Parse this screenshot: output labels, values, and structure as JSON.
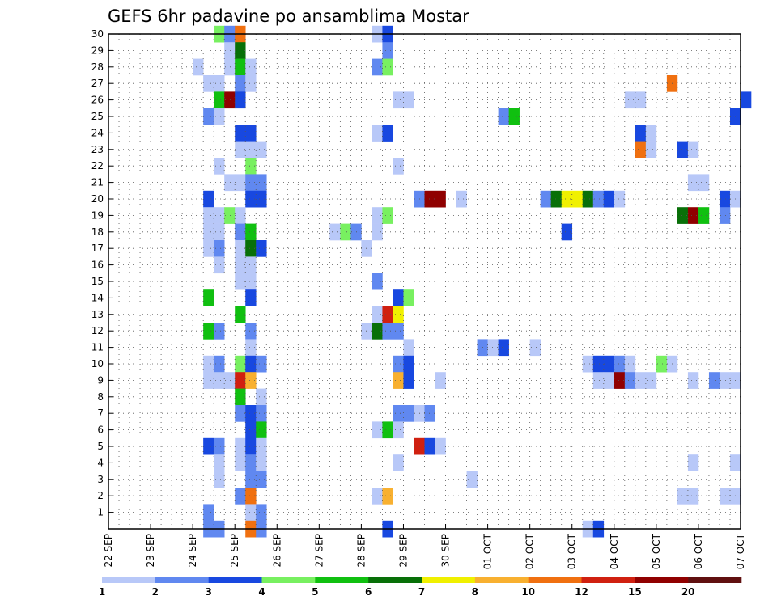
{
  "chart_data": {
    "type": "heatmap",
    "title": "GEFS 6hr padavine po ansamblima Mostar",
    "x_tick_labels": [
      "22 SEP",
      "23 SEP",
      "24 SEP",
      "25 SEP",
      "26 SEP",
      "27 SEP",
      "28 SEP",
      "29 SEP",
      "30 SEP",
      "01 OCT",
      "02 OCT",
      "03 OCT",
      "04 OCT",
      "05 OCT",
      "06 OCT",
      "07 OCT"
    ],
    "y_tick_labels": [
      "1",
      "2",
      "3",
      "4",
      "5",
      "6",
      "7",
      "8",
      "9",
      "10",
      "11",
      "12",
      "13",
      "14",
      "15",
      "16",
      "17",
      "18",
      "19",
      "20",
      "21",
      "22",
      "23",
      "24",
      "25",
      "26",
      "27",
      "28",
      "29",
      "30"
    ],
    "x_steps_per_day": 4,
    "x_range_steps": [
      0,
      60
    ],
    "y_range": [
      0,
      30
    ],
    "grid": true,
    "colorbar": {
      "labels": [
        "1",
        "2",
        "3",
        "4",
        "5",
        "6",
        "7",
        "8",
        "10",
        "12",
        "15",
        "20"
      ],
      "colors": [
        "#b8c8f8",
        "#6088f0",
        "#1848e0",
        "#78f060",
        "#10c010",
        "#087008",
        "#f0f000",
        "#f8b030",
        "#f07010",
        "#d02010",
        "#900000",
        "#601010"
      ]
    },
    "cells": [
      [
        10,
        30,
        4
      ],
      [
        11,
        30,
        2
      ],
      [
        12,
        30,
        9
      ],
      [
        25,
        30,
        1
      ],
      [
        26,
        30,
        3
      ],
      [
        11,
        29,
        1
      ],
      [
        12,
        29,
        6
      ],
      [
        26,
        29,
        2
      ],
      [
        8,
        28,
        1
      ],
      [
        11,
        28,
        1
      ],
      [
        12,
        28,
        5
      ],
      [
        13,
        28,
        1
      ],
      [
        25,
        28,
        2
      ],
      [
        26,
        28,
        4
      ],
      [
        9,
        27,
        1
      ],
      [
        10,
        27,
        1
      ],
      [
        12,
        27,
        2
      ],
      [
        13,
        27,
        1
      ],
      [
        53,
        27,
        9
      ],
      [
        10,
        26,
        5
      ],
      [
        11,
        26,
        11
      ],
      [
        12,
        26,
        3
      ],
      [
        27,
        26,
        1
      ],
      [
        28,
        26,
        1
      ],
      [
        49,
        26,
        1
      ],
      [
        50,
        26,
        1
      ],
      [
        60,
        26,
        3
      ],
      [
        9,
        25,
        2
      ],
      [
        10,
        25,
        1
      ],
      [
        37,
        25,
        2
      ],
      [
        38,
        25,
        5
      ],
      [
        59,
        25,
        3
      ],
      [
        12,
        24,
        3
      ],
      [
        13,
        24,
        3
      ],
      [
        25,
        24,
        1
      ],
      [
        26,
        24,
        3
      ],
      [
        50,
        24,
        3
      ],
      [
        51,
        24,
        1
      ],
      [
        12,
        23,
        1
      ],
      [
        13,
        23,
        1
      ],
      [
        14,
        23,
        1
      ],
      [
        50,
        23,
        9
      ],
      [
        51,
        23,
        1
      ],
      [
        54,
        23,
        3
      ],
      [
        55,
        23,
        1
      ],
      [
        10,
        22,
        1
      ],
      [
        13,
        22,
        4
      ],
      [
        27,
        22,
        1
      ],
      [
        11,
        21,
        1
      ],
      [
        12,
        21,
        1
      ],
      [
        13,
        21,
        2
      ],
      [
        14,
        21,
        2
      ],
      [
        55,
        21,
        1
      ],
      [
        56,
        21,
        1
      ],
      [
        9,
        20,
        3
      ],
      [
        13,
        20,
        3
      ],
      [
        14,
        20,
        3
      ],
      [
        29,
        20,
        2
      ],
      [
        30,
        20,
        11
      ],
      [
        31,
        20,
        11
      ],
      [
        33,
        20,
        1
      ],
      [
        41,
        20,
        2
      ],
      [
        42,
        20,
        6
      ],
      [
        43,
        20,
        7
      ],
      [
        44,
        20,
        7
      ],
      [
        45,
        20,
        6
      ],
      [
        46,
        20,
        2
      ],
      [
        47,
        20,
        3
      ],
      [
        48,
        20,
        1
      ],
      [
        58,
        20,
        3
      ],
      [
        59,
        20,
        1
      ],
      [
        9,
        19,
        1
      ],
      [
        10,
        19,
        1
      ],
      [
        11,
        19,
        4
      ],
      [
        12,
        19,
        1
      ],
      [
        25,
        19,
        1
      ],
      [
        26,
        19,
        4
      ],
      [
        54,
        19,
        6
      ],
      [
        55,
        19,
        11
      ],
      [
        56,
        19,
        5
      ],
      [
        58,
        19,
        2
      ],
      [
        9,
        18,
        1
      ],
      [
        10,
        18,
        1
      ],
      [
        12,
        18,
        2
      ],
      [
        13,
        18,
        5
      ],
      [
        21,
        18,
        1
      ],
      [
        22,
        18,
        4
      ],
      [
        23,
        18,
        2
      ],
      [
        25,
        18,
        1
      ],
      [
        43,
        18,
        3
      ],
      [
        9,
        17,
        1
      ],
      [
        10,
        17,
        2
      ],
      [
        12,
        17,
        1
      ],
      [
        13,
        17,
        6
      ],
      [
        14,
        17,
        3
      ],
      [
        24,
        17,
        1
      ],
      [
        10,
        16,
        1
      ],
      [
        12,
        16,
        1
      ],
      [
        13,
        16,
        1
      ],
      [
        12,
        15,
        1
      ],
      [
        13,
        15,
        1
      ],
      [
        25,
        15,
        2
      ],
      [
        9,
        14,
        5
      ],
      [
        13,
        14,
        3
      ],
      [
        27,
        14,
        3
      ],
      [
        28,
        14,
        4
      ],
      [
        25,
        13,
        1
      ],
      [
        26,
        13,
        10
      ],
      [
        27,
        13,
        7
      ],
      [
        12,
        13,
        5
      ],
      [
        9,
        12,
        5
      ],
      [
        10,
        12,
        2
      ],
      [
        13,
        12,
        2
      ],
      [
        24,
        12,
        1
      ],
      [
        25,
        12,
        6
      ],
      [
        26,
        12,
        2
      ],
      [
        27,
        12,
        2
      ],
      [
        13,
        11,
        1
      ],
      [
        28,
        11,
        1
      ],
      [
        35,
        11,
        2
      ],
      [
        36,
        11,
        1
      ],
      [
        37,
        11,
        3
      ],
      [
        40,
        11,
        1
      ],
      [
        9,
        10,
        1
      ],
      [
        10,
        10,
        2
      ],
      [
        12,
        10,
        4
      ],
      [
        13,
        10,
        3
      ],
      [
        14,
        10,
        2
      ],
      [
        27,
        10,
        2
      ],
      [
        28,
        10,
        3
      ],
      [
        45,
        10,
        1
      ],
      [
        46,
        10,
        3
      ],
      [
        47,
        10,
        3
      ],
      [
        48,
        10,
        2
      ],
      [
        49,
        10,
        1
      ],
      [
        52,
        10,
        4
      ],
      [
        53,
        10,
        1
      ],
      [
        9,
        9,
        1
      ],
      [
        10,
        9,
        1
      ],
      [
        11,
        9,
        1
      ],
      [
        12,
        9,
        10
      ],
      [
        13,
        9,
        8
      ],
      [
        27,
        9,
        8
      ],
      [
        28,
        9,
        3
      ],
      [
        31,
        9,
        1
      ],
      [
        46,
        9,
        1
      ],
      [
        47,
        9,
        1
      ],
      [
        48,
        9,
        11
      ],
      [
        49,
        9,
        2
      ],
      [
        50,
        9,
        1
      ],
      [
        51,
        9,
        1
      ],
      [
        55,
        9,
        1
      ],
      [
        57,
        9,
        2
      ],
      [
        58,
        9,
        1
      ],
      [
        59,
        9,
        1
      ],
      [
        12,
        8,
        5
      ],
      [
        14,
        8,
        1
      ],
      [
        12,
        7,
        2
      ],
      [
        13,
        7,
        3
      ],
      [
        14,
        7,
        2
      ],
      [
        27,
        7,
        2
      ],
      [
        28,
        7,
        2
      ],
      [
        29,
        7,
        1
      ],
      [
        30,
        7,
        2
      ],
      [
        13,
        6,
        3
      ],
      [
        14,
        6,
        5
      ],
      [
        25,
        6,
        1
      ],
      [
        26,
        6,
        5
      ],
      [
        27,
        6,
        1
      ],
      [
        9,
        5,
        3
      ],
      [
        10,
        5,
        2
      ],
      [
        12,
        5,
        1
      ],
      [
        13,
        5,
        3
      ],
      [
        14,
        5,
        1
      ],
      [
        29,
        5,
        10
      ],
      [
        30,
        5,
        3
      ],
      [
        31,
        5,
        1
      ],
      [
        10,
        4,
        1
      ],
      [
        12,
        4,
        1
      ],
      [
        13,
        4,
        2
      ],
      [
        14,
        4,
        1
      ],
      [
        27,
        4,
        1
      ],
      [
        55,
        4,
        1
      ],
      [
        59,
        4,
        1
      ],
      [
        10,
        3,
        1
      ],
      [
        13,
        3,
        2
      ],
      [
        14,
        3,
        2
      ],
      [
        34,
        3,
        1
      ],
      [
        12,
        2,
        2
      ],
      [
        13,
        2,
        9
      ],
      [
        25,
        2,
        1
      ],
      [
        26,
        2,
        8
      ],
      [
        54,
        2,
        1
      ],
      [
        55,
        2,
        1
      ],
      [
        58,
        2,
        1
      ],
      [
        59,
        2,
        1
      ],
      [
        9,
        1,
        2
      ],
      [
        13,
        1,
        1
      ],
      [
        14,
        1,
        2
      ],
      [
        9,
        0,
        2
      ],
      [
        10,
        0,
        2
      ],
      [
        13,
        0,
        9
      ],
      [
        14,
        0,
        2
      ],
      [
        26,
        0,
        3
      ],
      [
        45,
        0,
        1
      ],
      [
        46,
        0,
        3
      ]
    ]
  }
}
